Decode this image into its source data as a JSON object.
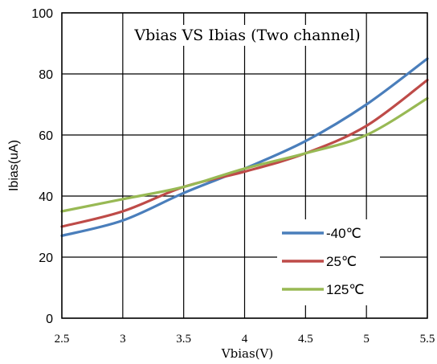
{
  "chart_data": {
    "type": "line",
    "title": "Vbias VS Ibias (Two channel)",
    "xlabel": "Vbias(V)",
    "ylabel": "Ibias(uA)",
    "xlim": [
      2.5,
      5.5
    ],
    "ylim": [
      0,
      100
    ],
    "x_ticks": [
      "2.5",
      "3",
      "3.5",
      "4",
      "4.5",
      "5",
      "5.5"
    ],
    "y_ticks": [
      "0",
      "20",
      "40",
      "60",
      "80",
      "100"
    ],
    "grid": true,
    "legend_position": "bottom-right",
    "series": [
      {
        "name": "-40℃",
        "color": "#4a7ebb",
        "x": [
          2.5,
          3.0,
          3.5,
          4.0,
          4.5,
          5.0,
          5.5
        ],
        "y": [
          27,
          32,
          41,
          49,
          58,
          70,
          85
        ]
      },
      {
        "name": "25℃",
        "color": "#be4b48",
        "x": [
          2.5,
          3.0,
          3.5,
          4.0,
          4.5,
          5.0,
          5.5
        ],
        "y": [
          30,
          35,
          43,
          48,
          54,
          63,
          78
        ]
      },
      {
        "name": "125℃",
        "color": "#98b954",
        "x": [
          2.5,
          3.0,
          3.5,
          4.0,
          4.5,
          5.0,
          5.5
        ],
        "y": [
          35,
          39,
          43,
          49,
          54,
          60,
          72
        ]
      }
    ]
  }
}
